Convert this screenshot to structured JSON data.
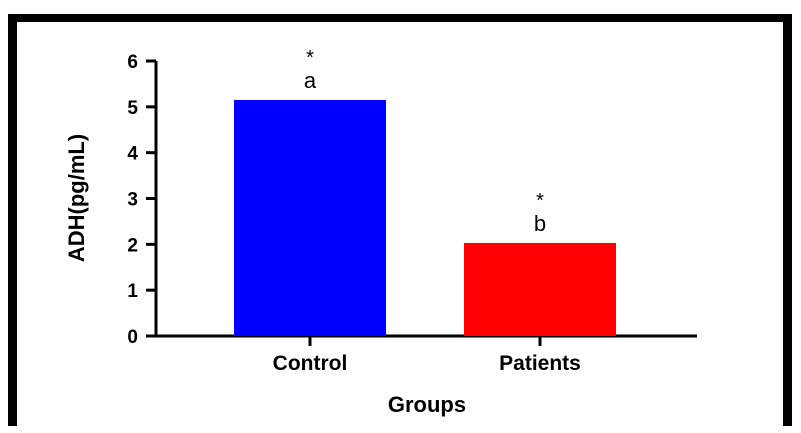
{
  "chart_data": {
    "type": "bar",
    "categories": [
      "Control",
      "Patients"
    ],
    "values": [
      5.15,
      2.03
    ],
    "colors": [
      "#0000ff",
      "#ff0000"
    ],
    "annotations": [
      {
        "star": "*",
        "letter": "a"
      },
      {
        "star": "*",
        "letter": "b"
      }
    ],
    "xlabel": "Groups",
    "ylabel": "ADH(pg/mL)",
    "ylim": [
      0,
      6
    ],
    "yticks": [
      "0",
      "1",
      "2",
      "3",
      "4",
      "5",
      "6"
    ],
    "grid": false,
    "legend": "none"
  }
}
